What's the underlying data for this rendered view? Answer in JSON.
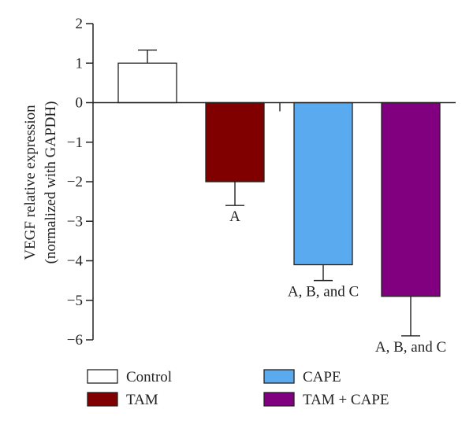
{
  "chart_data": {
    "type": "bar",
    "ylabel": "VEGF relative expression",
    "ylabel_line2": "(normalized with GAPDH)",
    "ylim": [
      -6,
      2
    ],
    "yticks": [
      "−6",
      "−5",
      "−4",
      "−3",
      "−2",
      "−1",
      "0",
      "1",
      "2"
    ],
    "ytick_values": [
      -6,
      -5,
      -4,
      -3,
      -2,
      -1,
      0,
      1,
      2
    ],
    "categories": [
      "Control",
      "TAM",
      "CAPE",
      "TAM + CAPE"
    ],
    "values": [
      1.0,
      -2.0,
      -4.1,
      -4.9
    ],
    "errors": [
      0.33,
      0.6,
      0.4,
      1.0
    ],
    "colors": [
      "#ffffff",
      "#800000",
      "#5aaaf0",
      "#800080"
    ],
    "annotations": [
      "",
      "A",
      "A, B, and C",
      "A, B, and C"
    ],
    "grid": false,
    "legend": {
      "placement": "bottom",
      "entries": [
        "Control",
        "CAPE",
        "TAM",
        "TAM + CAPE"
      ],
      "colors": [
        "#ffffff",
        "#5aaaf0",
        "#800000",
        "#800080"
      ]
    }
  }
}
